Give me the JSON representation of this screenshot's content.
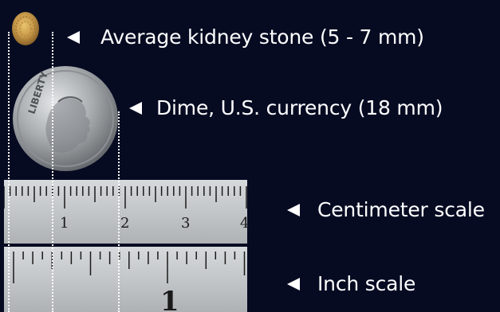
{
  "labels": {
    "stone": "Average kidney stone (5 - 7 mm)",
    "dime": "Dime, U.S. currency (18 mm)",
    "cm": "Centimeter scale",
    "inch": "Inch scale"
  },
  "rulers": {
    "cm_numbers": [
      "1",
      "2",
      "3",
      "4"
    ],
    "inch_number": "1"
  },
  "dime_text": "LIBERTY",
  "colors": {
    "background": "#060b22",
    "text": "#ffffff",
    "ruler": "#c9cdd0",
    "ruler_ink": "#1a1a1a",
    "dime": "#a9adb0",
    "stone": "#c89a4a"
  },
  "icons": [
    "left-triangle-arrow-icon"
  ]
}
